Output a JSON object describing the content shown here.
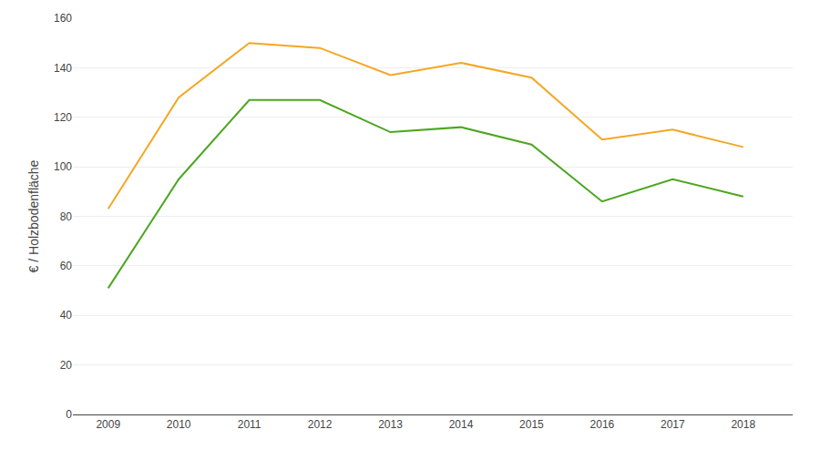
{
  "chart_data": {
    "type": "line",
    "ylabel": "€ / Holzbodenfläche",
    "x": [
      2009,
      2010,
      2011,
      2012,
      2013,
      2014,
      2015,
      2016,
      2017,
      2018
    ],
    "series": [
      {
        "color": "#F5A623",
        "values": [
          83,
          128,
          150,
          148,
          137,
          142,
          136,
          111,
          115,
          108
        ]
      },
      {
        "color": "#4CA620",
        "values": [
          51,
          95,
          127,
          127,
          114,
          116,
          109,
          86,
          95,
          88
        ]
      }
    ],
    "xlim": [
      2008.5,
      2018.7
    ],
    "xticks": [
      2009,
      2010,
      2011,
      2012,
      2013,
      2014,
      2015,
      2016,
      2017,
      2018
    ],
    "ylim": [
      0,
      160
    ],
    "yticks": [
      0,
      20,
      40,
      60,
      80,
      100,
      120,
      140,
      160
    ],
    "grid": true
  }
}
